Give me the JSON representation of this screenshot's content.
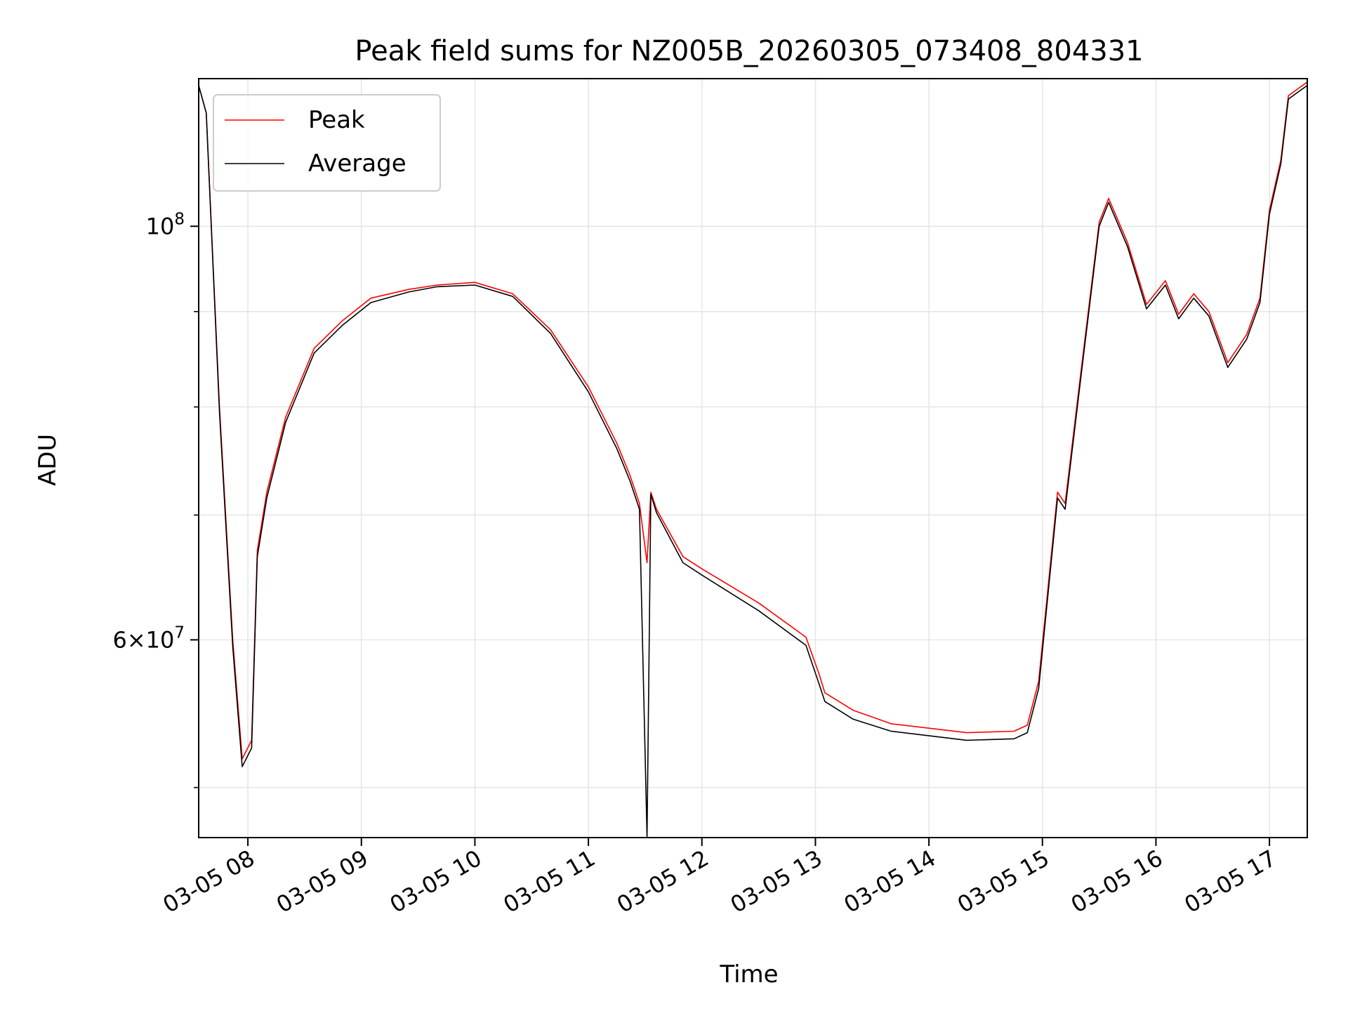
{
  "chart_data": {
    "type": "line",
    "title": "Peak field sums for NZ005B_20260305_073408_804331",
    "xlabel": "Time",
    "ylabel": "ADU",
    "xlim": [
      "2026-03-05 07:34",
      "2026-03-05 17:20"
    ],
    "ylim": [
      47000000,
      120000000
    ],
    "yscale": "log",
    "grid": true,
    "legend_position": "upper left",
    "x_ticks": [
      "03-05 08",
      "03-05 09",
      "03-05 10",
      "03-05 11",
      "03-05 12",
      "03-05 13",
      "03-05 14",
      "03-05 15",
      "03-05 16",
      "03-05 17"
    ],
    "y_ticks": [
      {
        "value": 60000000,
        "label_base": "6×10",
        "label_exp": "7"
      },
      {
        "value": 100000000,
        "label_base": "10",
        "label_exp": "8"
      }
    ],
    "series": [
      {
        "name": "Peak",
        "color": "#ff0000",
        "x": [
          "2026-03-05 07:34",
          "2026-03-05 07:38",
          "2026-03-05 07:45",
          "2026-03-05 07:52",
          "2026-03-05 07:57",
          "2026-03-05 08:02",
          "2026-03-05 08:05",
          "2026-03-05 08:10",
          "2026-03-05 08:20",
          "2026-03-05 08:35",
          "2026-03-05 08:50",
          "2026-03-05 09:05",
          "2026-03-05 09:25",
          "2026-03-05 09:40",
          "2026-03-05 10:00",
          "2026-03-05 10:20",
          "2026-03-05 10:40",
          "2026-03-05 11:00",
          "2026-03-05 11:15",
          "2026-03-05 11:22",
          "2026-03-05 11:27",
          "2026-03-05 11:31",
          "2026-03-05 11:33",
          "2026-03-05 11:36",
          "2026-03-05 11:50",
          "2026-03-05 12:00",
          "2026-03-05 12:30",
          "2026-03-05 12:55",
          "2026-03-05 13:02",
          "2026-03-05 13:05",
          "2026-03-05 13:20",
          "2026-03-05 13:40",
          "2026-03-05 14:00",
          "2026-03-05 14:20",
          "2026-03-05 14:45",
          "2026-03-05 14:52",
          "2026-03-05 14:58",
          "2026-03-05 15:08",
          "2026-03-05 15:12",
          "2026-03-05 15:20",
          "2026-03-05 15:30",
          "2026-03-05 15:35",
          "2026-03-05 15:45",
          "2026-03-05 15:55",
          "2026-03-05 16:05",
          "2026-03-05 16:12",
          "2026-03-05 16:20",
          "2026-03-05 16:28",
          "2026-03-05 16:38",
          "2026-03-05 16:48",
          "2026-03-05 16:55",
          "2026-03-05 17:00",
          "2026-03-05 17:06",
          "2026-03-05 17:10",
          "2026-03-05 17:15",
          "2026-03-05 17:20"
        ],
        "y": [
          119000000,
          115000000,
          80000000,
          60000000,
          51800000,
          53000000,
          67000000,
          72000000,
          79000000,
          86000000,
          89000000,
          91500000,
          92500000,
          93000000,
          93300000,
          92000000,
          88000000,
          82000000,
          76500000,
          73500000,
          71000000,
          66000000,
          72000000,
          70500000,
          66500000,
          65500000,
          62800000,
          60200000,
          57500000,
          56200000,
          55000000,
          54100000,
          53800000,
          53500000,
          53600000,
          54000000,
          57000000,
          72000000,
          71000000,
          83000000,
          100500000,
          103500000,
          98000000,
          90800000,
          93500000,
          89700000,
          92000000,
          90000000,
          84500000,
          87500000,
          91500000,
          102000000,
          108500000,
          117500000,
          118500000,
          119500000
        ]
      },
      {
        "name": "Average",
        "color": "#000000",
        "x": [
          "2026-03-05 07:34",
          "2026-03-05 07:38",
          "2026-03-05 07:45",
          "2026-03-05 07:52",
          "2026-03-05 07:57",
          "2026-03-05 08:02",
          "2026-03-05 08:05",
          "2026-03-05 08:10",
          "2026-03-05 08:20",
          "2026-03-05 08:35",
          "2026-03-05 08:50",
          "2026-03-05 09:05",
          "2026-03-05 09:25",
          "2026-03-05 09:40",
          "2026-03-05 10:00",
          "2026-03-05 10:20",
          "2026-03-05 10:40",
          "2026-03-05 11:00",
          "2026-03-05 11:15",
          "2026-03-05 11:22",
          "2026-03-05 11:27",
          "2026-03-05 11:31",
          "2026-03-05 11:33",
          "2026-03-05 11:36",
          "2026-03-05 11:50",
          "2026-03-05 12:00",
          "2026-03-05 12:30",
          "2026-03-05 12:55",
          "2026-03-05 13:02",
          "2026-03-05 13:05",
          "2026-03-05 13:20",
          "2026-03-05 13:40",
          "2026-03-05 14:00",
          "2026-03-05 14:20",
          "2026-03-05 14:45",
          "2026-03-05 14:52",
          "2026-03-05 14:58",
          "2026-03-05 15:08",
          "2026-03-05 15:12",
          "2026-03-05 15:20",
          "2026-03-05 15:30",
          "2026-03-05 15:35",
          "2026-03-05 15:45",
          "2026-03-05 15:55",
          "2026-03-05 16:05",
          "2026-03-05 16:12",
          "2026-03-05 16:20",
          "2026-03-05 16:28",
          "2026-03-05 16:38",
          "2026-03-05 16:48",
          "2026-03-05 16:55",
          "2026-03-05 17:00",
          "2026-03-05 17:06",
          "2026-03-05 17:10",
          "2026-03-05 17:15",
          "2026-03-05 17:20"
        ],
        "y": [
          119000000,
          115000000,
          79500000,
          59500000,
          51300000,
          52500000,
          66500000,
          71500000,
          78500000,
          85500000,
          88500000,
          91000000,
          92200000,
          92800000,
          93000000,
          91700000,
          87600000,
          81500000,
          76000000,
          73000000,
          70500000,
          47000000,
          71800000,
          70200000,
          66000000,
          65000000,
          62200000,
          59600000,
          56800000,
          55600000,
          54400000,
          53600000,
          53300000,
          53000000,
          53100000,
          53500000,
          56500000,
          71500000,
          70500000,
          82500000,
          100000000,
          103000000,
          97500000,
          90300000,
          93000000,
          89200000,
          91500000,
          89500000,
          84000000,
          87000000,
          91000000,
          101500000,
          108000000,
          117000000,
          118000000,
          119000000
        ]
      }
    ]
  }
}
